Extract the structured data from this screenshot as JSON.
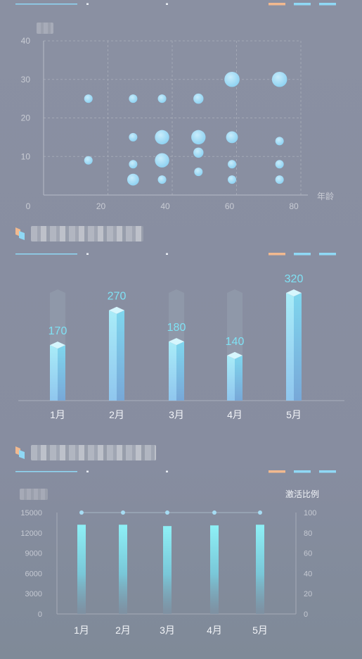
{
  "colors": {
    "accent": "#8fd8f5",
    "bubble": "#a6dcf6",
    "label": "#7fe1f4",
    "orange": "#f1b98f",
    "axis": "#b6bbc6",
    "grid": "#a3a8b5"
  },
  "section1": {
    "chart_data": {
      "type": "scatter",
      "xlabel": "年龄",
      "ylabel": "",
      "xlim": [
        0,
        80
      ],
      "ylim": [
        0,
        40
      ],
      "x_ticks": [
        "0",
        "20",
        "40",
        "60",
        "80"
      ],
      "y_ticks": [
        "10",
        "20",
        "30",
        "40"
      ],
      "grid": true,
      "points": [
        {
          "x": 10,
          "y": 25,
          "size": 1
        },
        {
          "x": 10,
          "y": 9,
          "size": 1
        },
        {
          "x": 25,
          "y": 25,
          "size": 1
        },
        {
          "x": 25,
          "y": 15,
          "size": 1
        },
        {
          "x": 25,
          "y": 8,
          "size": 1
        },
        {
          "x": 25,
          "y": 4,
          "size": 1.4
        },
        {
          "x": 34,
          "y": 25,
          "size": 1
        },
        {
          "x": 34,
          "y": 15,
          "size": 1.7
        },
        {
          "x": 34,
          "y": 9,
          "size": 1.7
        },
        {
          "x": 34,
          "y": 4,
          "size": 1
        },
        {
          "x": 44,
          "y": 25,
          "size": 1.2
        },
        {
          "x": 44,
          "y": 15,
          "size": 1.7
        },
        {
          "x": 44,
          "y": 11,
          "size": 1.2
        },
        {
          "x": 44,
          "y": 6,
          "size": 1
        },
        {
          "x": 54,
          "y": 30,
          "size": 1.8
        },
        {
          "x": 54,
          "y": 15,
          "size": 1.4
        },
        {
          "x": 54,
          "y": 8,
          "size": 1
        },
        {
          "x": 54,
          "y": 4,
          "size": 1
        },
        {
          "x": 69,
          "y": 30,
          "size": 1.8
        },
        {
          "x": 69,
          "y": 14,
          "size": 1
        },
        {
          "x": 69,
          "y": 8,
          "size": 1
        },
        {
          "x": 69,
          "y": 4,
          "size": 1
        }
      ]
    }
  },
  "section2": {
    "chart_data": {
      "type": "bar",
      "categories": [
        "1月",
        "2月",
        "3月",
        "4月",
        "5月"
      ],
      "values": [
        170,
        270,
        180,
        140,
        320
      ],
      "ylim": [
        0,
        320
      ],
      "background_bars": [
        true,
        false,
        true,
        true,
        false
      ]
    }
  },
  "section3": {
    "chart_data": {
      "type": "bar",
      "categories": [
        "1月",
        "2月",
        "3月",
        "4月",
        "5月"
      ],
      "series": [
        {
          "axis": "left",
          "values": [
            13200,
            13200,
            13000,
            13100,
            13200
          ]
        },
        {
          "name": "激活比例",
          "axis": "right",
          "type": "line",
          "values": [
            100,
            100,
            100,
            100,
            100
          ]
        }
      ],
      "right_axis_title": "激活比例",
      "left_ylim": [
        0,
        15000
      ],
      "right_ylim": [
        0,
        100
      ],
      "left_ticks": [
        "0",
        "3000",
        "6000",
        "9000",
        "12000",
        "15000"
      ],
      "right_ticks": [
        "0",
        "20",
        "40",
        "60",
        "80",
        "100"
      ]
    }
  }
}
